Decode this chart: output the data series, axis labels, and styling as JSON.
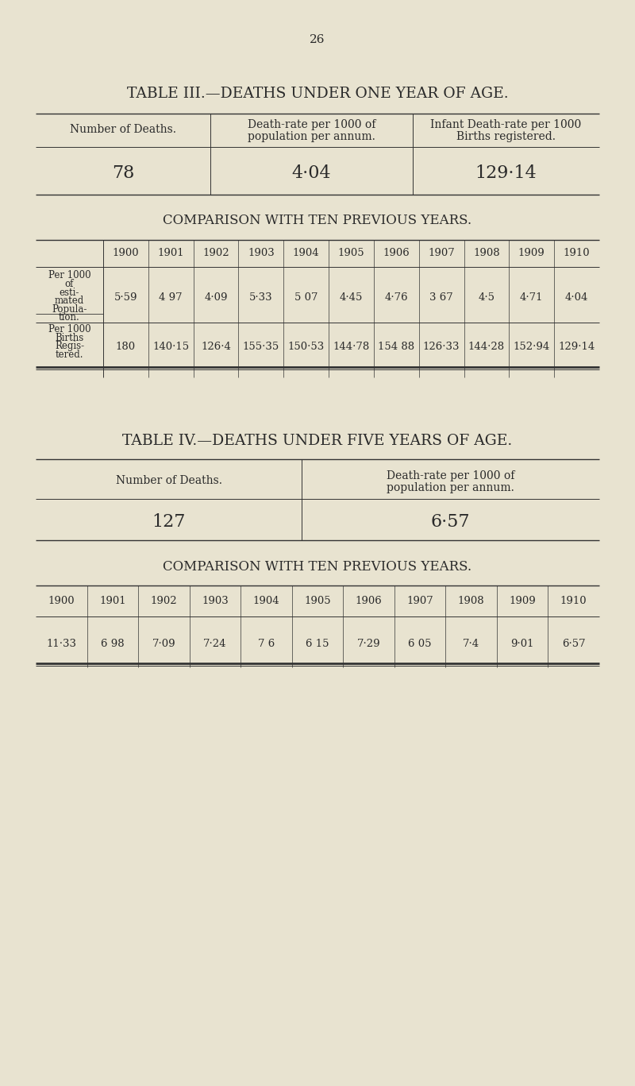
{
  "bg_color": "#e8e3d0",
  "text_color": "#2a2a2a",
  "page_number": "26",
  "table3": {
    "title": "TABLE III.—DEATHS UNDER ONE YEAR OF AGE.",
    "header_col1": "Number of Deaths.",
    "header_col2": "Death-rate per 1000 of\npopulation per annum.",
    "header_col3": "Infant Death-rate per 1000\nBirths registered.",
    "val1": "78",
    "val2": "4·04",
    "val3": "129·14",
    "comparison_title": "COMPARISON WITH TEN PREVIOUS YEARS.",
    "years": [
      "1900",
      "1901",
      "1902",
      "1903",
      "1904",
      "1905",
      "1906",
      "1907",
      "1908",
      "1909",
      "1910"
    ],
    "row1_label": [
      "Per 1000",
      "of",
      "esti-",
      "mated",
      "Popula-",
      "tion."
    ],
    "row1_values": [
      "5·59",
      "4 97",
      "4·09",
      "5·33",
      "5 07",
      "4·45",
      "4·76",
      "3 67",
      "4·5",
      "4·71",
      "4·04"
    ],
    "row2_label": [
      "Per 1000",
      "Births",
      "Regis-",
      "tered."
    ],
    "row2_values": [
      "180",
      "140·15",
      "126·4",
      "155·35",
      "150·53",
      "144·78",
      "154 88",
      "126·33",
      "144·28",
      "152·94",
      "129·14"
    ]
  },
  "table4": {
    "title": "TABLE IV.—DEATHS UNDER FIVE YEARS OF AGE.",
    "header_col1": "Number of Deaths.",
    "header_col2": "Death-rate per 1000 of\npopulation per annum.",
    "val1": "127",
    "val2": "6·57",
    "comparison_title": "COMPARISON WITH TEN PREVIOUS YEARS.",
    "years": [
      "1900",
      "1901",
      "1902",
      "1903",
      "1904",
      "1905",
      "1906",
      "1907",
      "1908",
      "1909",
      "1910"
    ],
    "row1_values": [
      "11·33",
      "6 98",
      "7·09",
      "7·24",
      "7 6",
      "6 15",
      "7·29",
      "6 05",
      "7·4",
      "9·01",
      "6·57"
    ]
  }
}
